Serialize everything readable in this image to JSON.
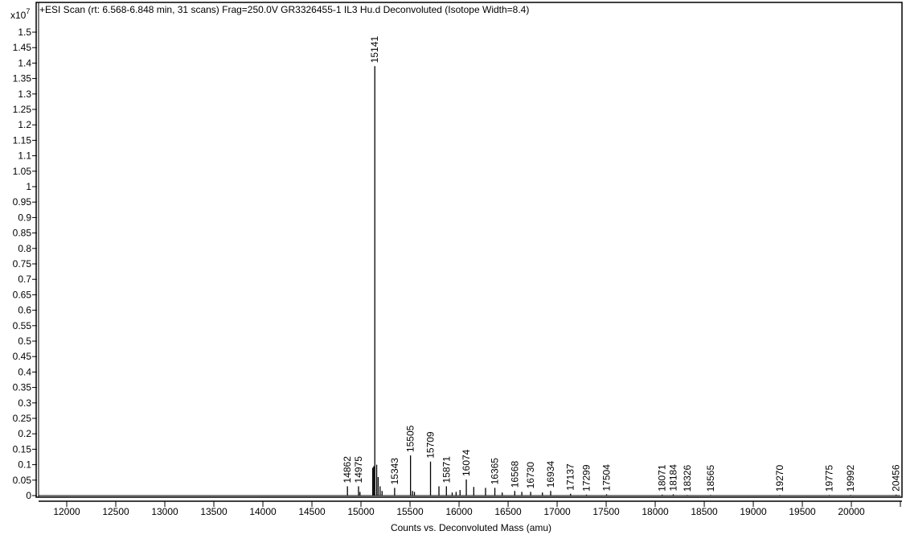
{
  "chart_data": {
    "type": "line",
    "title": "+ESI Scan (rt: 6.568-6.848 min, 31 scans) Frag=250.0V GR3326455-1 IL3 Hu.d  Deconvoluted (Isotope Width=8.4)",
    "xlabel": "Counts vs. Deconvoluted Mass (amu)",
    "ylabel": "",
    "y_multiplier": "x10",
    "y_multiplier_exp": "7",
    "xlim": [
      11713,
      20516
    ],
    "ylim": [
      0,
      1.5
    ],
    "grid": false,
    "legend": "none",
    "x_ticks": [
      12000,
      12500,
      13000,
      13500,
      14000,
      14500,
      15000,
      15500,
      16000,
      16500,
      17000,
      17500,
      18000,
      18500,
      19000,
      19500,
      20000
    ],
    "x_tick_labels": [
      "12000",
      "12500",
      "13000",
      "13500",
      "14000",
      "14500",
      "15000",
      "15500",
      "16000",
      "16500",
      "17000",
      "17500",
      "18000",
      "18500",
      "19000",
      "19500",
      "20000"
    ],
    "y_ticks": [
      0,
      0.05,
      0.1,
      0.15,
      0.2,
      0.25,
      0.3,
      0.35,
      0.4,
      0.45,
      0.5,
      0.55,
      0.6,
      0.65,
      0.7,
      0.75,
      0.8,
      0.85,
      0.9,
      0.95,
      1,
      1.05,
      1.1,
      1.15,
      1.2,
      1.25,
      1.3,
      1.35,
      1.4,
      1.45,
      1.5
    ],
    "y_tick_labels": [
      "0",
      "0.05",
      "0.1",
      "0.15",
      "0.2",
      "0.25",
      "0.3",
      "0.35",
      "0.4",
      "0.45",
      "0.5",
      "0.55",
      "0.6",
      "0.65",
      "0.7",
      "0.75",
      "0.8",
      "0.85",
      "0.9",
      "0.95",
      "1",
      "1.05",
      "1.1",
      "1.15",
      "1.2",
      "1.25",
      "1.3",
      "1.35",
      "1.4",
      "1.45",
      "1.5"
    ],
    "labeled_peaks": [
      {
        "mass": 14862,
        "label": "14862",
        "intensity": 0.03
      },
      {
        "mass": 14975,
        "label": "14975",
        "intensity": 0.03
      },
      {
        "mass": 15141,
        "label": "15141",
        "intensity": 1.39
      },
      {
        "mass": 15343,
        "label": "15343",
        "intensity": 0.025
      },
      {
        "mass": 15505,
        "label": "15505",
        "intensity": 0.13
      },
      {
        "mass": 15709,
        "label": "15709",
        "intensity": 0.11
      },
      {
        "mass": 15871,
        "label": "15871",
        "intensity": 0.03
      },
      {
        "mass": 16074,
        "label": "16074",
        "intensity": 0.052
      },
      {
        "mass": 16365,
        "label": "16365",
        "intensity": 0.025
      },
      {
        "mass": 16568,
        "label": "16568",
        "intensity": 0.015
      },
      {
        "mass": 16730,
        "label": "16730",
        "intensity": 0.012
      },
      {
        "mass": 16934,
        "label": "16934",
        "intensity": 0.015
      },
      {
        "mass": 17137,
        "label": "17137",
        "intensity": 0.006
      },
      {
        "mass": 17299,
        "label": "17299",
        "intensity": 0.003
      },
      {
        "mass": 17504,
        "label": "17504",
        "intensity": 0.004
      },
      {
        "mass": 18071,
        "label": "18071",
        "intensity": 0.003
      },
      {
        "mass": 18184,
        "label": "18184",
        "intensity": 0.004
      },
      {
        "mass": 18326,
        "label": "18326",
        "intensity": 0.002
      },
      {
        "mass": 18565,
        "label": "18565",
        "intensity": 0.002
      },
      {
        "mass": 19270,
        "label": "19270",
        "intensity": 0.002
      },
      {
        "mass": 19775,
        "label": "19775",
        "intensity": 0.002
      },
      {
        "mass": 19992,
        "label": "19992",
        "intensity": 0.002
      },
      {
        "mass": 20456,
        "label": "20456",
        "intensity": 0.003
      }
    ],
    "unlabeled_peaks": [
      {
        "mass": 14990,
        "intensity": 0.012
      },
      {
        "mass": 15120,
        "intensity": 0.09
      },
      {
        "mass": 15130,
        "intensity": 0.095
      },
      {
        "mass": 15160,
        "intensity": 0.1
      },
      {
        "mass": 15175,
        "intensity": 0.06
      },
      {
        "mass": 15195,
        "intensity": 0.03
      },
      {
        "mass": 15215,
        "intensity": 0.015
      },
      {
        "mass": 15525,
        "intensity": 0.015
      },
      {
        "mass": 15545,
        "intensity": 0.012
      },
      {
        "mass": 15795,
        "intensity": 0.03
      },
      {
        "mass": 15930,
        "intensity": 0.01
      },
      {
        "mass": 15970,
        "intensity": 0.012
      },
      {
        "mass": 16010,
        "intensity": 0.018
      },
      {
        "mass": 16150,
        "intensity": 0.028
      },
      {
        "mass": 16270,
        "intensity": 0.025
      },
      {
        "mass": 16440,
        "intensity": 0.01
      },
      {
        "mass": 16640,
        "intensity": 0.012
      },
      {
        "mass": 16850,
        "intensity": 0.01
      }
    ]
  }
}
